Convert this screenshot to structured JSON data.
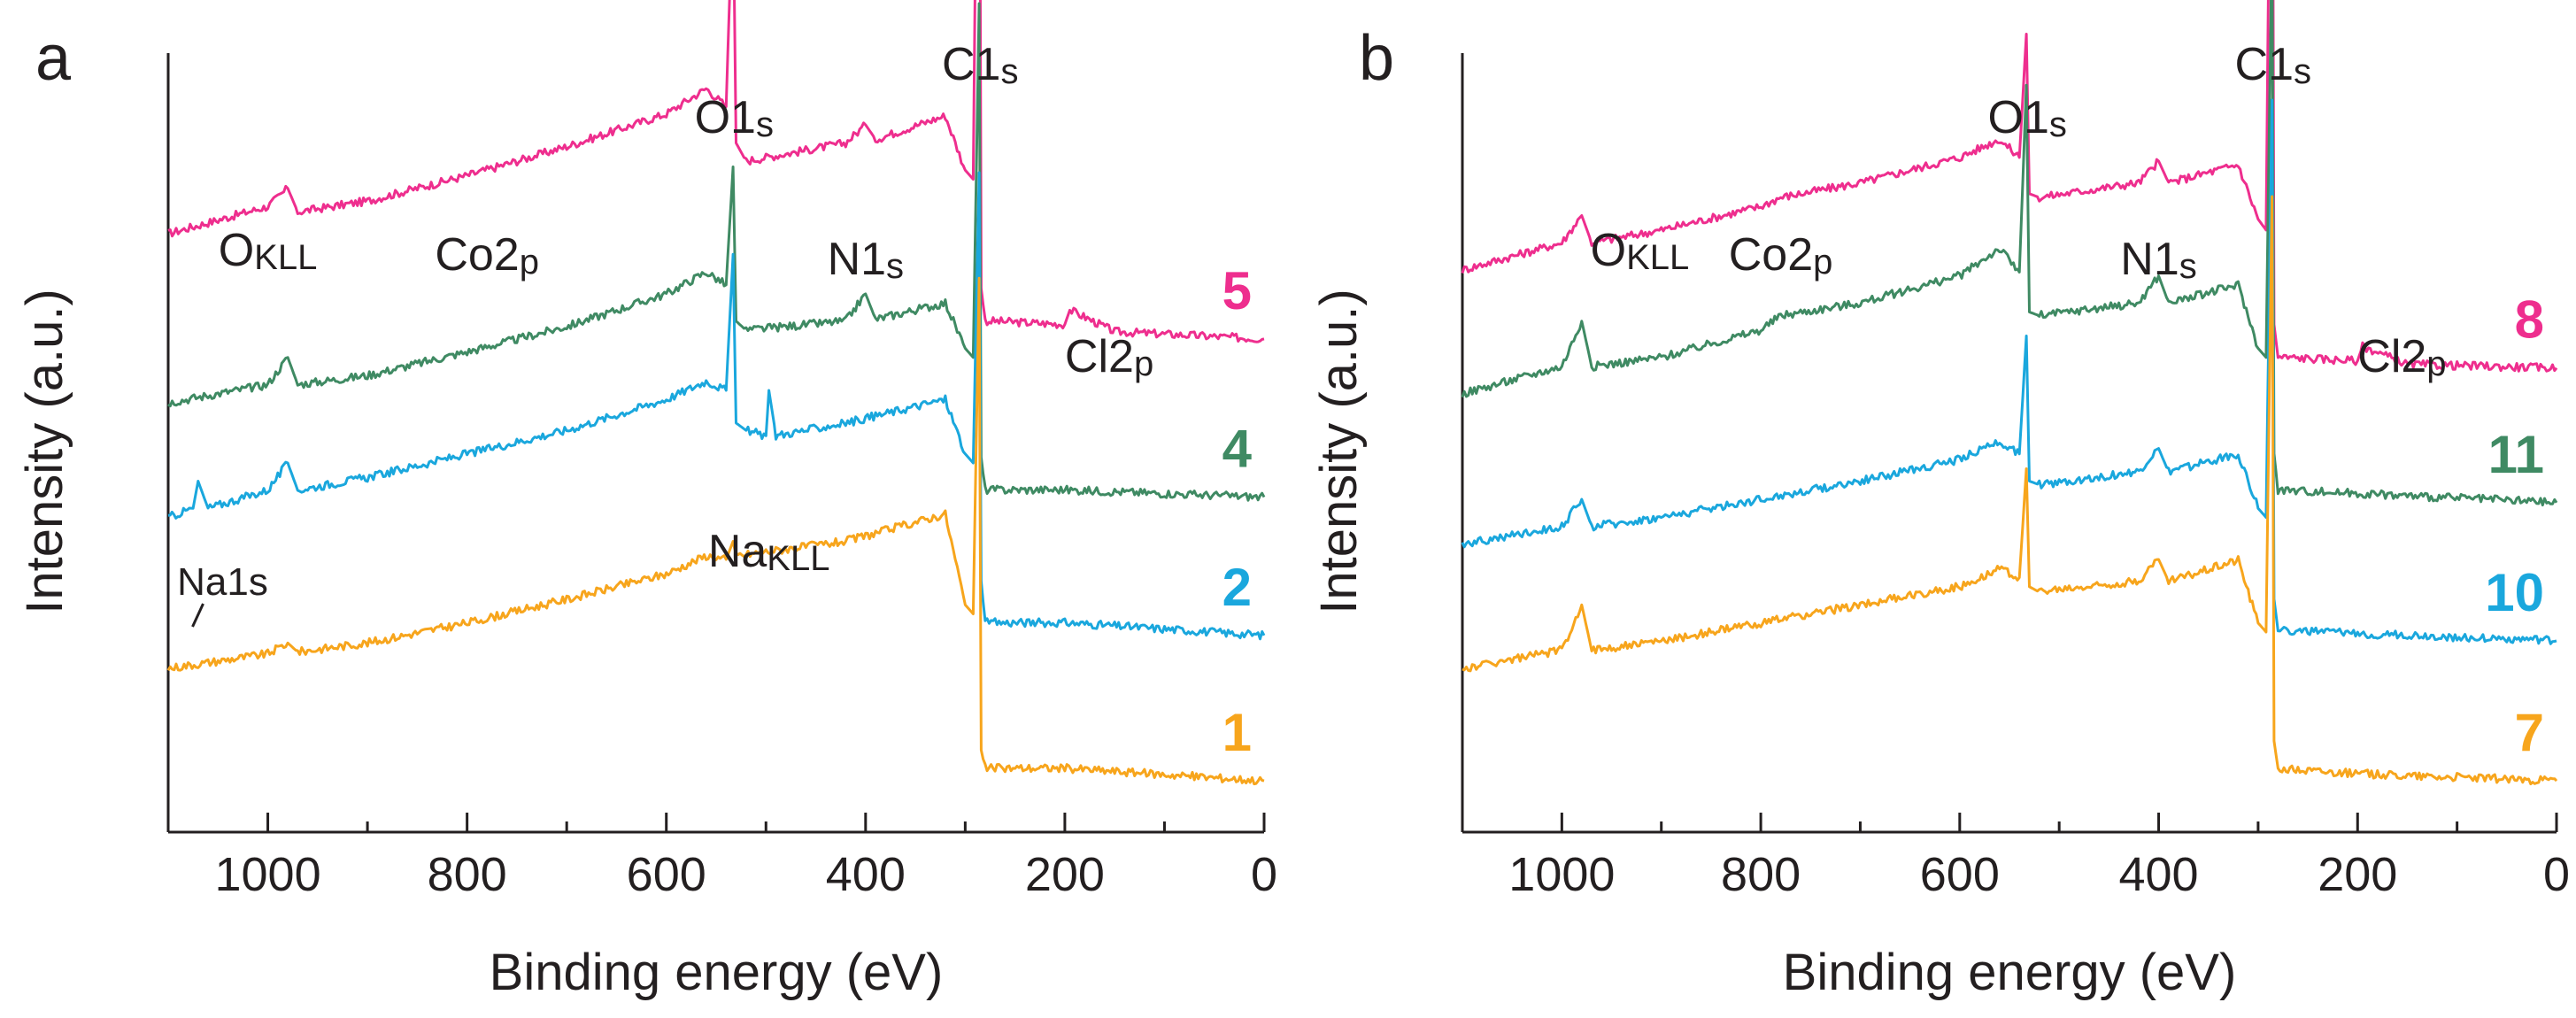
{
  "colors": {
    "s1": "#f7a51c",
    "s2": "#1aa7dd",
    "s3": "#3f8a63",
    "s4": "#ee2e8e",
    "axis": "#231f20"
  },
  "chart_data": [
    {
      "type": "line",
      "panel": "a",
      "xlabel": "Binding energy (eV)",
      "ylabel": "Intensity (a.u.)",
      "xlim": [
        1100,
        0
      ],
      "x_reversed": true,
      "x_ticks": [
        1000,
        800,
        600,
        400,
        200,
        0
      ],
      "x_tick_labels": [
        "1000",
        "800",
        "600",
        "400",
        "200",
        "0"
      ],
      "y_ticks": [],
      "annotations": [
        {
          "text": "O",
          "sub": "KLL",
          "x": 1000
        },
        {
          "text": "Co2",
          "sub": "p",
          "x": 780
        },
        {
          "text": "O1",
          "sub": "s",
          "x": 532
        },
        {
          "text": "N1",
          "sub": "s",
          "x": 400
        },
        {
          "text": "C1",
          "sub": "s",
          "x": 285
        },
        {
          "text": "Cl2",
          "sub": "p",
          "x": 200
        },
        {
          "text": "Na1s",
          "sub": "",
          "x": 1072
        },
        {
          "text": "Na",
          "sub": "KLL",
          "x": 497
        }
      ],
      "series": [
        {
          "name": "5",
          "color_key": "s4",
          "offset": 3.0,
          "x": [
            1100,
            1000,
            980,
            970,
            900,
            800,
            700,
            600,
            560,
            540,
            533,
            530,
            520,
            420,
            400,
            390,
            320,
            300,
            292,
            286,
            284,
            280,
            200,
            195,
            150,
            0
          ],
          "values": [
            1.2,
            1.35,
            1.45,
            1.32,
            1.38,
            1.52,
            1.68,
            1.86,
            2.0,
            1.9,
            3.1,
            1.7,
            1.6,
            1.7,
            1.8,
            1.72,
            1.85,
            1.55,
            1.5,
            4.8,
            0.9,
            0.72,
            0.7,
            0.78,
            0.66,
            0.62
          ]
        },
        {
          "name": "4",
          "color_key": "s3",
          "offset": 2.0,
          "x": [
            1100,
            1000,
            980,
            970,
            900,
            800,
            700,
            600,
            560,
            540,
            533,
            530,
            520,
            420,
            400,
            390,
            320,
            300,
            292,
            286,
            284,
            280,
            200,
            0
          ],
          "values": [
            1.0,
            1.1,
            1.25,
            1.1,
            1.15,
            1.28,
            1.42,
            1.6,
            1.72,
            1.65,
            2.3,
            1.45,
            1.4,
            1.45,
            1.6,
            1.46,
            1.55,
            1.3,
            1.25,
            3.2,
            0.7,
            0.52,
            0.52,
            0.48
          ]
        },
        {
          "name": "2",
          "color_key": "s2",
          "offset": 1.0,
          "x": [
            1100,
            1075,
            1070,
            1060,
            1000,
            980,
            970,
            900,
            800,
            700,
            600,
            560,
            540,
            533,
            530,
            520,
            500,
            497,
            490,
            420,
            320,
            300,
            292,
            286,
            284,
            280,
            200,
            0
          ],
          "values": [
            1.1,
            1.15,
            1.3,
            1.15,
            1.25,
            1.4,
            1.25,
            1.32,
            1.45,
            1.58,
            1.75,
            1.85,
            1.8,
            2.55,
            1.62,
            1.58,
            1.55,
            1.8,
            1.55,
            1.62,
            1.75,
            1.45,
            1.4,
            3.0,
            0.75,
            0.52,
            0.52,
            0.45
          ]
        },
        {
          "name": "1",
          "color_key": "s1",
          "offset": 0.0,
          "x": [
            1100,
            1000,
            980,
            970,
            900,
            800,
            700,
            600,
            560,
            540,
            533,
            530,
            420,
            320,
            300,
            292,
            286,
            284,
            280,
            200,
            0
          ],
          "values": [
            1.0,
            1.08,
            1.14,
            1.09,
            1.14,
            1.25,
            1.38,
            1.52,
            1.62,
            1.6,
            1.7,
            1.62,
            1.7,
            1.85,
            1.35,
            1.3,
            3.15,
            0.55,
            0.45,
            0.45,
            0.38
          ]
        }
      ]
    },
    {
      "type": "line",
      "panel": "b",
      "xlabel": "Binding energy (eV)",
      "ylabel": "Intensity (a.u.)",
      "xlim": [
        1100,
        0
      ],
      "x_reversed": true,
      "x_ticks": [
        1000,
        800,
        600,
        400,
        200,
        0
      ],
      "x_tick_labels": [
        "1000",
        "800",
        "600",
        "400",
        "200",
        "0"
      ],
      "y_ticks": [],
      "annotations": [
        {
          "text": "O",
          "sub": "KLL",
          "x": 975
        },
        {
          "text": "Co2",
          "sub": "p",
          "x": 780
        },
        {
          "text": "O1",
          "sub": "s",
          "x": 532
        },
        {
          "text": "N1",
          "sub": "s",
          "x": 400
        },
        {
          "text": "C1",
          "sub": "s",
          "x": 285
        },
        {
          "text": "Cl2",
          "sub": "p",
          "x": 200
        }
      ],
      "series": [
        {
          "name": "8",
          "color_key": "s4",
          "offset": 3.0,
          "x": [
            1100,
            1000,
            980,
            970,
            900,
            800,
            780,
            700,
            600,
            560,
            540,
            533,
            530,
            520,
            420,
            400,
            390,
            320,
            300,
            292,
            286,
            284,
            280,
            200,
            195,
            150,
            0
          ],
          "values": [
            1.0,
            1.15,
            1.3,
            1.15,
            1.22,
            1.35,
            1.4,
            1.48,
            1.62,
            1.72,
            1.62,
            2.3,
            1.42,
            1.4,
            1.48,
            1.6,
            1.48,
            1.58,
            1.28,
            1.22,
            4.6,
            0.7,
            0.52,
            0.5,
            0.58,
            0.48,
            0.46
          ]
        },
        {
          "name": "11",
          "color_key": "s3",
          "offset": 2.0,
          "x": [
            1100,
            1000,
            980,
            970,
            900,
            800,
            780,
            700,
            600,
            560,
            540,
            533,
            530,
            520,
            420,
            400,
            390,
            320,
            300,
            292,
            286,
            284,
            280,
            200,
            0
          ],
          "values": [
            1.05,
            1.2,
            1.45,
            1.2,
            1.25,
            1.4,
            1.48,
            1.55,
            1.7,
            1.85,
            1.72,
            2.75,
            1.5,
            1.48,
            1.55,
            1.7,
            1.55,
            1.65,
            1.3,
            1.25,
            3.6,
            0.72,
            0.52,
            0.5,
            0.45
          ]
        },
        {
          "name": "10",
          "color_key": "s2",
          "offset": 1.0,
          "x": [
            1100,
            1000,
            980,
            970,
            900,
            800,
            700,
            600,
            560,
            540,
            533,
            530,
            520,
            420,
            400,
            390,
            320,
            300,
            292,
            286,
            284,
            280,
            200,
            0
          ],
          "values": [
            0.95,
            1.05,
            1.2,
            1.05,
            1.1,
            1.2,
            1.3,
            1.42,
            1.52,
            1.45,
            2.1,
            1.3,
            1.28,
            1.35,
            1.48,
            1.35,
            1.45,
            1.15,
            1.1,
            3.4,
            0.65,
            0.48,
            0.46,
            0.42
          ]
        },
        {
          "name": "7",
          "color_key": "s1",
          "offset": 0.0,
          "x": [
            1100,
            1000,
            980,
            970,
            900,
            800,
            700,
            600,
            560,
            540,
            533,
            530,
            520,
            420,
            400,
            390,
            320,
            300,
            292,
            286,
            284,
            280,
            200,
            0
          ],
          "values": [
            1.0,
            1.1,
            1.35,
            1.1,
            1.15,
            1.25,
            1.35,
            1.45,
            1.55,
            1.5,
            2.1,
            1.45,
            1.42,
            1.48,
            1.6,
            1.48,
            1.6,
            1.25,
            1.2,
            3.6,
            0.6,
            0.45,
            0.42,
            0.38
          ]
        }
      ]
    }
  ]
}
